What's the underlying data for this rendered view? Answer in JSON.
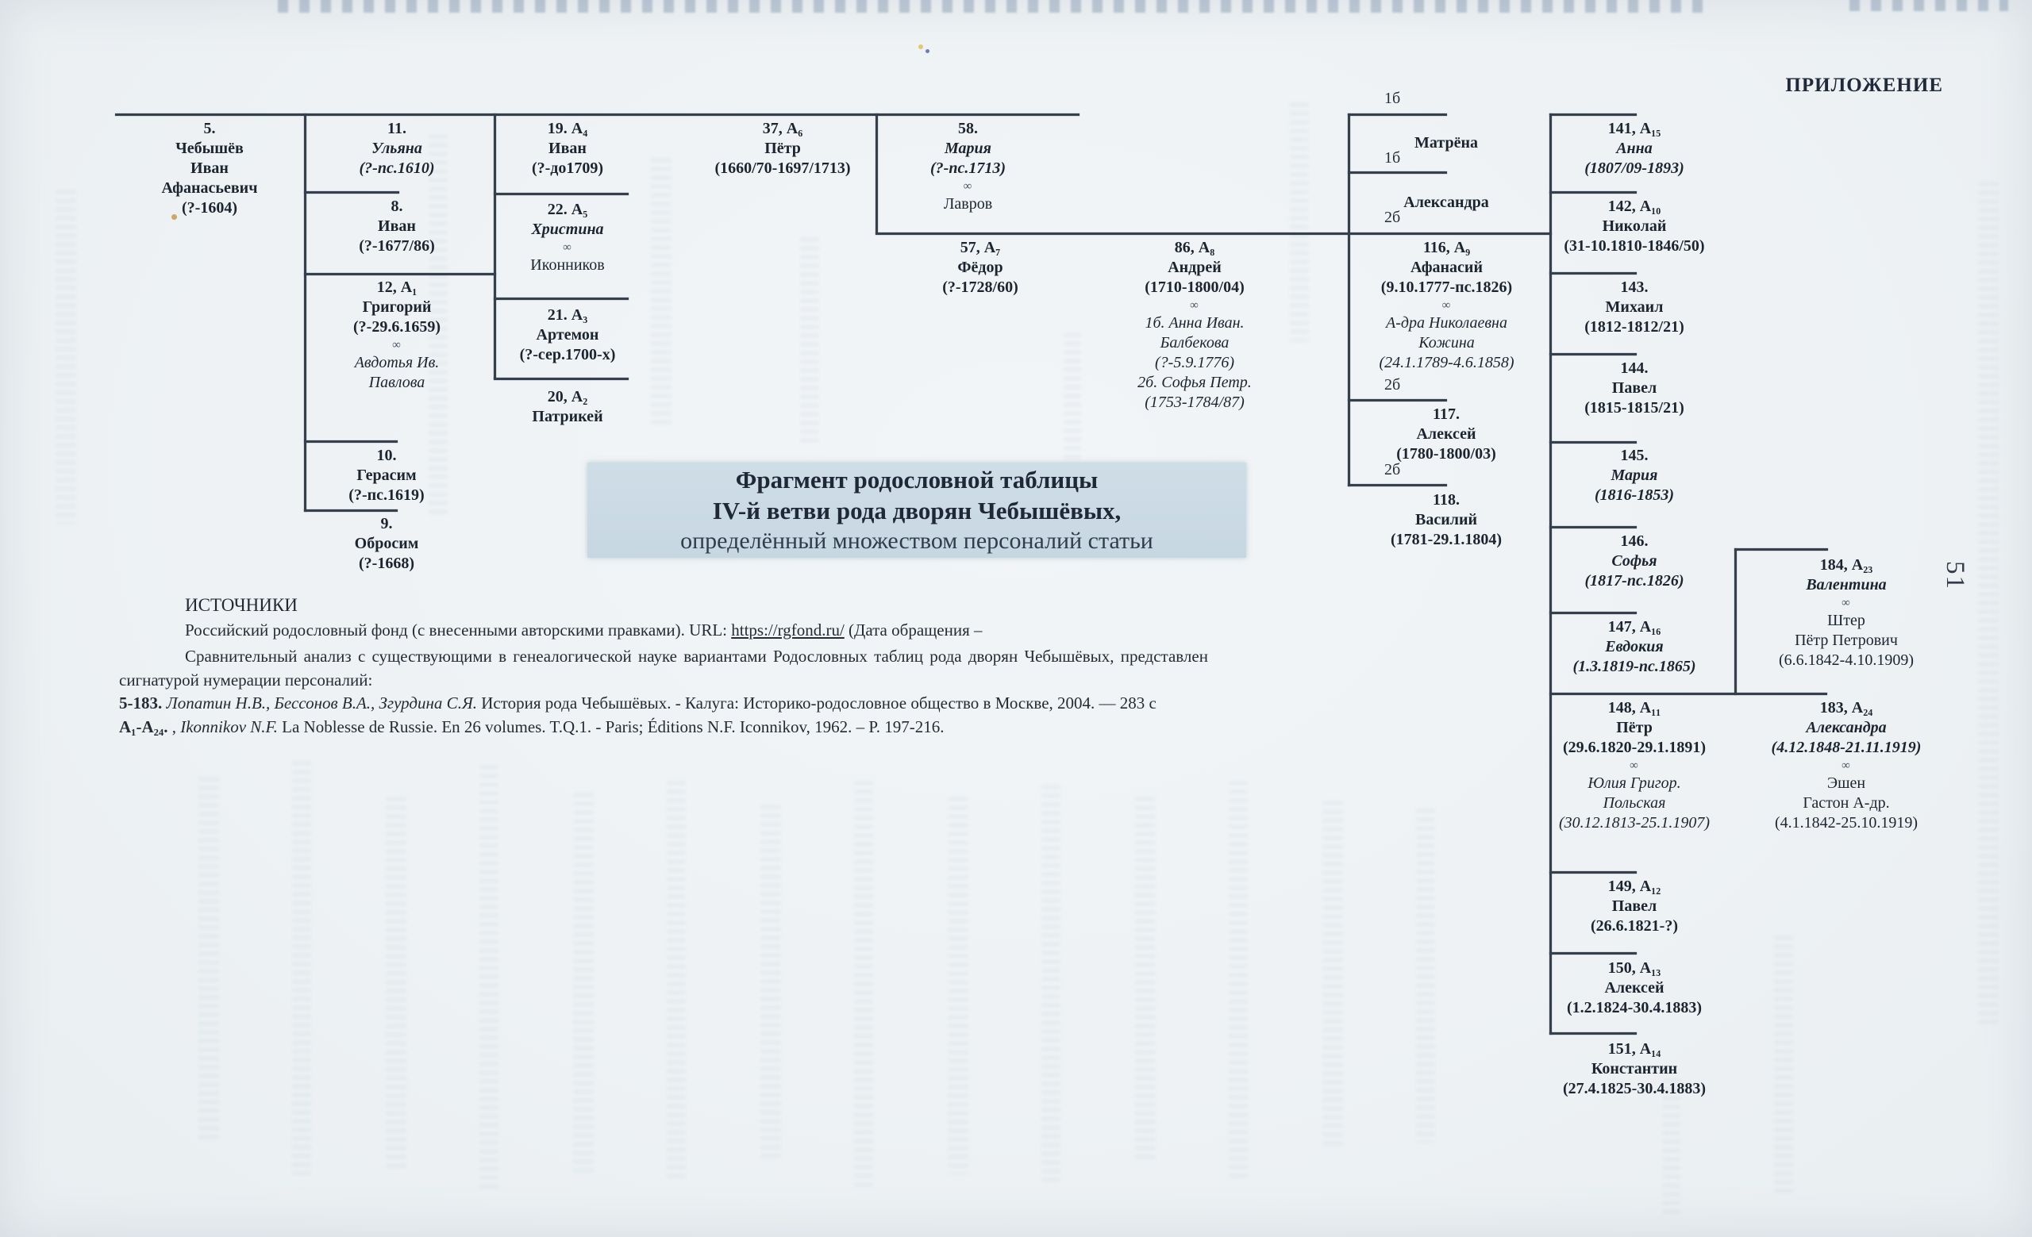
{
  "page": {
    "appendix_label": "ПРИЛОЖЕНИЕ",
    "page_number": "51",
    "title": {
      "line1": "Фрагмент родословной таблицы",
      "line2": "IV-й ветви рода дворян Чебышёвых,",
      "line3": "определённый множеством персоналий статьи"
    },
    "sources": {
      "heading": "ИСТОЧНИКИ",
      "line1_pre": "Российский родословный фонд (с внесенными авторскими правками). URL: ",
      "line1_url": "https://rgfond.ru/",
      "line1_post": " (Дата обращения –",
      "line2": "Сравнительный анализ с существующими в генеалогической науке вариантами Родословных таблиц рода дворян Чебышёвых, представлен",
      "line3": "сигнатурой нумерации персоналий:",
      "line4_sig": "5-183.",
      "line4_authors": " Лопатин Н.В., Бессонов В.А., Згурдина С.Я.",
      "line4_rest": " История рода Чебышёвых. - Калуга: Историко-родословное общество в Москве, 2004. — 283 с",
      "line5_sig": "А₁-А₂₄.",
      "line5_sep": " , ",
      "line5_authors": "Ikonnikov N.F.",
      "line5_rest": " La Noblesse de Russie. En 26 volumes. T.Q.1. - Paris; Éditions N.F. Iconnikov, 1962. – P. 197-216."
    }
  },
  "tree": {
    "marriage_symbol": "∞",
    "branch_labels": [
      {
        "text": "1б"
      },
      {
        "text": "1б"
      },
      {
        "text": "2б"
      },
      {
        "text": "2б"
      },
      {
        "text": "2б"
      }
    ],
    "persons": [
      {
        "id": "5",
        "lines": [
          [
            "b",
            "5."
          ],
          [
            "b",
            "Чебышёв"
          ],
          [
            "b",
            "Иван"
          ],
          [
            "b",
            "Афанасьевич"
          ],
          [
            "b",
            "(?-1604)"
          ]
        ]
      },
      {
        "id": "11",
        "lines": [
          [
            "b",
            "11."
          ],
          [
            "bi",
            "Ульяна"
          ],
          [
            "bi",
            "(?-пс.1610)"
          ]
        ]
      },
      {
        "id": "8",
        "lines": [
          [
            "b",
            "8."
          ],
          [
            "b",
            "Иван"
          ],
          [
            "b",
            "(?-1677/86)"
          ]
        ]
      },
      {
        "id": "12",
        "lines": [
          [
            "b",
            "12, А₁"
          ],
          [
            "b",
            "Григорий"
          ],
          [
            "b",
            "(?-29.6.1659)"
          ],
          [
            "inf",
            "∞"
          ],
          [
            "i",
            "Авдотья Ив."
          ],
          [
            "i",
            "Павлова"
          ]
        ]
      },
      {
        "id": "10",
        "lines": [
          [
            "b",
            "10."
          ],
          [
            "b",
            "Герасим"
          ],
          [
            "b",
            "(?-пс.1619)"
          ]
        ]
      },
      {
        "id": "9",
        "lines": [
          [
            "b",
            "9."
          ],
          [
            "b",
            "Обросим"
          ],
          [
            "b",
            "(?-1668)"
          ]
        ]
      },
      {
        "id": "19",
        "lines": [
          [
            "b",
            "19. А₄"
          ],
          [
            "b",
            "Иван"
          ],
          [
            "b",
            "(?-до1709)"
          ]
        ]
      },
      {
        "id": "22",
        "lines": [
          [
            "b",
            "22. А₅"
          ],
          [
            "bi",
            "Христина"
          ],
          [
            "inf",
            "∞"
          ],
          [
            "r",
            "Иконников"
          ]
        ]
      },
      {
        "id": "21",
        "lines": [
          [
            "b",
            "21. А₃"
          ],
          [
            "b",
            "Артемон"
          ],
          [
            "b",
            "(?-сер.1700-х)"
          ]
        ]
      },
      {
        "id": "20",
        "lines": [
          [
            "b",
            "20, А₂"
          ],
          [
            "b",
            "Патрикей"
          ]
        ]
      },
      {
        "id": "37",
        "lines": [
          [
            "b",
            "37, А₆"
          ],
          [
            "b",
            "Пётр"
          ],
          [
            "b",
            "(1660/70-1697/1713)"
          ]
        ]
      },
      {
        "id": "58",
        "lines": [
          [
            "b",
            "58."
          ],
          [
            "bi",
            "Мария"
          ],
          [
            "bi",
            "(?-пс.1713)"
          ],
          [
            "inf",
            "∞"
          ],
          [
            "r",
            "Лавров"
          ]
        ]
      },
      {
        "id": "57",
        "lines": [
          [
            "b",
            "57, А₇"
          ],
          [
            "b",
            "Фёдор"
          ],
          [
            "b",
            "(?-1728/60)"
          ]
        ]
      },
      {
        "id": "86",
        "lines": [
          [
            "b",
            "86, А₈"
          ],
          [
            "b",
            "Андрей"
          ],
          [
            "b",
            "(1710-1800/04)"
          ],
          [
            "inf",
            "∞"
          ],
          [
            "i",
            "1б. Анна Иван."
          ],
          [
            "i",
            "Балбекова"
          ],
          [
            "i",
            "(?-5.9.1776)"
          ],
          [
            "i",
            "2б. Софья Петр."
          ],
          [
            "i",
            "(1753-1784/87)"
          ]
        ]
      },
      {
        "id": "matrena",
        "lines": [
          [
            "b",
            "Матрёна"
          ]
        ]
      },
      {
        "id": "aleksandra",
        "lines": [
          [
            "b",
            "Александра"
          ]
        ]
      },
      {
        "id": "116",
        "lines": [
          [
            "b",
            "116, А₉"
          ],
          [
            "b",
            "Афанасий"
          ],
          [
            "b",
            "(9.10.1777-пс.1826)"
          ],
          [
            "inf",
            "∞"
          ],
          [
            "i",
            "А-дра Николаевна"
          ],
          [
            "i",
            "Кожина"
          ],
          [
            "i",
            "(24.1.1789-4.6.1858)"
          ]
        ]
      },
      {
        "id": "117",
        "lines": [
          [
            "b",
            "117."
          ],
          [
            "b",
            "Алексей"
          ],
          [
            "b",
            "(1780-1800/03)"
          ]
        ]
      },
      {
        "id": "118",
        "lines": [
          [
            "b",
            "118."
          ],
          [
            "b",
            "Василий"
          ],
          [
            "b",
            "(1781-29.1.1804)"
          ]
        ]
      },
      {
        "id": "141",
        "lines": [
          [
            "b",
            "141, А₁₅"
          ],
          [
            "bi",
            "Анна"
          ],
          [
            "bi",
            "(1807/09-1893)"
          ]
        ]
      },
      {
        "id": "142",
        "lines": [
          [
            "b",
            "142, А₁₀"
          ],
          [
            "b",
            "Николай"
          ],
          [
            "b",
            "(31-10.1810-1846/50)"
          ]
        ]
      },
      {
        "id": "143",
        "lines": [
          [
            "b",
            "143."
          ],
          [
            "b",
            "Михаил"
          ],
          [
            "b",
            "(1812-1812/21)"
          ]
        ]
      },
      {
        "id": "144",
        "lines": [
          [
            "b",
            "144."
          ],
          [
            "b",
            "Павел"
          ],
          [
            "b",
            "(1815-1815/21)"
          ]
        ]
      },
      {
        "id": "145",
        "lines": [
          [
            "b",
            "145."
          ],
          [
            "bi",
            "Мария"
          ],
          [
            "bi",
            "(1816-1853)"
          ]
        ]
      },
      {
        "id": "146",
        "lines": [
          [
            "b",
            "146."
          ],
          [
            "bi",
            "Софья"
          ],
          [
            "bi",
            "(1817-пс.1826)"
          ]
        ]
      },
      {
        "id": "147",
        "lines": [
          [
            "b",
            "147, А₁₆"
          ],
          [
            "bi",
            "Евдокия"
          ],
          [
            "bi",
            "(1.3.1819-пс.1865)"
          ]
        ]
      },
      {
        "id": "148",
        "lines": [
          [
            "b",
            "148, А₁₁"
          ],
          [
            "b",
            "Пётр"
          ],
          [
            "b",
            "(29.6.1820-29.1.1891)"
          ],
          [
            "inf",
            "∞"
          ],
          [
            "i",
            "Юлия Григор."
          ],
          [
            "i",
            "Польская"
          ],
          [
            "i",
            "(30.12.1813-25.1.1907)"
          ]
        ]
      },
      {
        "id": "149",
        "lines": [
          [
            "b",
            "149, А₁₂"
          ],
          [
            "b",
            "Павел"
          ],
          [
            "b",
            "(26.6.1821-?)"
          ]
        ]
      },
      {
        "id": "150",
        "lines": [
          [
            "b",
            "150, А₁₃"
          ],
          [
            "b",
            "Алексей"
          ],
          [
            "b",
            "(1.2.1824-30.4.1883)"
          ]
        ]
      },
      {
        "id": "151",
        "lines": [
          [
            "b",
            "151, А₁₄"
          ],
          [
            "b",
            "Константин"
          ],
          [
            "b",
            "(27.4.1825-30.4.1883)"
          ]
        ]
      },
      {
        "id": "184",
        "lines": [
          [
            "b",
            "184, А₂₃"
          ],
          [
            "bi",
            "Валентина"
          ],
          [
            "inf",
            "∞"
          ],
          [
            "r",
            "Штер"
          ],
          [
            "r",
            "Пётр Петрович"
          ],
          [
            "r",
            "(6.6.1842-4.10.1909)"
          ]
        ]
      },
      {
        "id": "183",
        "lines": [
          [
            "b",
            "183, А₂₄"
          ],
          [
            "bi",
            "Александра"
          ],
          [
            "bi",
            "(4.12.1848-21.11.1919)"
          ],
          [
            "inf",
            "∞"
          ],
          [
            "r",
            "Эшен"
          ],
          [
            "r",
            "Гастон А-др."
          ],
          [
            "r",
            "(4.1.1842-25.10.1919)"
          ]
        ]
      }
    ],
    "colors": {
      "ink": "#1c2430",
      "line": "#36404d",
      "title_bg": "#c9d8e3",
      "paper": "#eef2f4"
    }
  }
}
